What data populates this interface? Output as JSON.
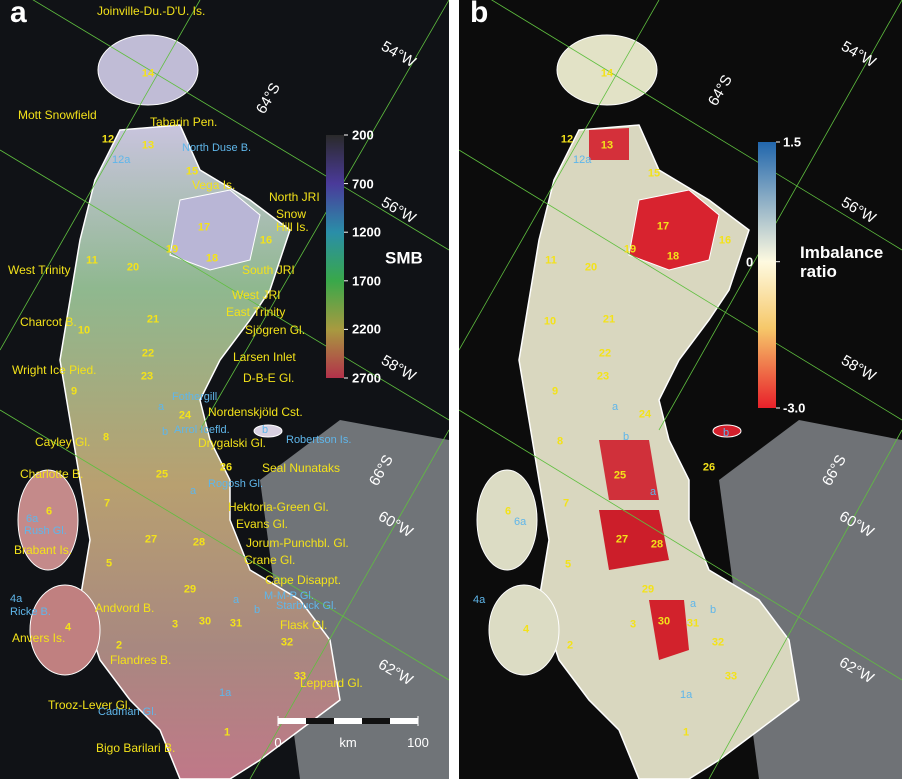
{
  "panels": [
    {
      "letter": "a",
      "basin_ids": [
        "14",
        "12",
        "13",
        "15",
        "17",
        "19",
        "18",
        "16",
        "11",
        "20",
        "21",
        "10",
        "22",
        "23",
        "9",
        "24",
        "8",
        "25",
        "26",
        "7",
        "6",
        "27",
        "28",
        "5",
        "29",
        "4",
        "30",
        "3",
        "31",
        "32",
        "2",
        "33",
        "1"
      ],
      "place_names": [
        "Joinville-Du.-D'U. Is.",
        "Mott Snowfield",
        "Tabarin Pen.",
        "Vega Is.",
        "North JRI",
        "Snow Hill Is.",
        "West Trinity",
        "South JRI",
        "West JRI",
        "East Trinity",
        "Charcot B.",
        "Sjögren Gl.",
        "Larsen Inlet",
        "Wright Ice Pied.",
        "D-B-E Gl.",
        "Nordenskjöld Cst.",
        "Cayley Gl.",
        "Drygalski Gl.",
        "Seal Nunataks",
        "Charlotte B.",
        "Hektoria-Green Gl.",
        "Brabant Is.",
        "Evans Gl.",
        "Jorum-Punchbl. Gl.",
        "Crane Gl.",
        "Cape Disappt.",
        "Andvord B.",
        "Flask Gl.",
        "Anvers Is.",
        "Flandres B.",
        "Trooz-Lever Gl.",
        "Leppard Gl.",
        "Bigo Barilari B."
      ],
      "sub_labels": [
        "12a",
        "North Duse B.",
        "Fothergill",
        "a",
        "Arrol Icefld.",
        "b",
        "b",
        "Robertson Is.",
        "Rogosh Gl.",
        "a",
        "6a",
        "Rush Gl.",
        "M-M-P Gl.",
        "a",
        "b",
        "Starbuck Gl.",
        "4a",
        "Ricke B.",
        "Cadman Gl.",
        "1a"
      ],
      "graticule_labels": [
        "64°S",
        "54°W",
        "56°W",
        "58°W",
        "66°S",
        "60°W",
        "62°W"
      ],
      "colorbar": {
        "title": "SMB",
        "range": [
          200,
          2700
        ],
        "ticks": [
          200,
          700,
          1200,
          1700,
          2200,
          2700
        ]
      },
      "scale_bar": {
        "ticks": [
          0,
          100
        ],
        "unit": "km"
      }
    },
    {
      "letter": "b",
      "basin_ids": [
        "14",
        "12",
        "13",
        "15",
        "17",
        "19",
        "18",
        "16",
        "11",
        "20",
        "21",
        "10",
        "22",
        "23",
        "9",
        "24",
        "8",
        "25",
        "26",
        "7",
        "6",
        "27",
        "28",
        "5",
        "29",
        "4",
        "30",
        "3",
        "31",
        "32",
        "2",
        "33",
        "1"
      ],
      "sub_labels": [
        "12a",
        "6a",
        "4a",
        "a",
        "b",
        "b",
        "a",
        "a",
        "b",
        "1a"
      ],
      "graticule_labels": [
        "54°W",
        "64°S",
        "56°W",
        "58°W",
        "66°S",
        "60°W",
        "62°W"
      ],
      "colorbar": {
        "title": "Imbalance ratio",
        "range": [
          1.5,
          -3
        ],
        "ticks": [
          1.5,
          0,
          {
            "value": -3,
            "label": "-3.0"
          }
        ]
      }
    }
  ]
}
